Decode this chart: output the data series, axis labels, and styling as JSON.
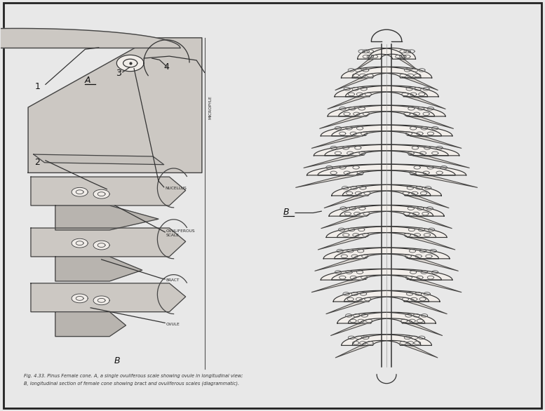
{
  "bg_color": "#e8e8e8",
  "border_color": "#222222",
  "fig_width": 7.77,
  "fig_height": 5.86,
  "caption_line1": "Fig. 4.33. Pinus Female cone. A, a single ovuliferous scale showing ovule in longitudinal view;",
  "caption_line2": "B, longitudinal section of female cone showing bract and ovuliferous scales (diagrammatic).",
  "micropyle_label": "MICROPYLE",
  "nucellus_label": "NUCELLUS",
  "ovuliferous_label": "OVULIFEROUS\nSCALE",
  "bract_label": "BRACT",
  "ovule_label": "OVULE"
}
